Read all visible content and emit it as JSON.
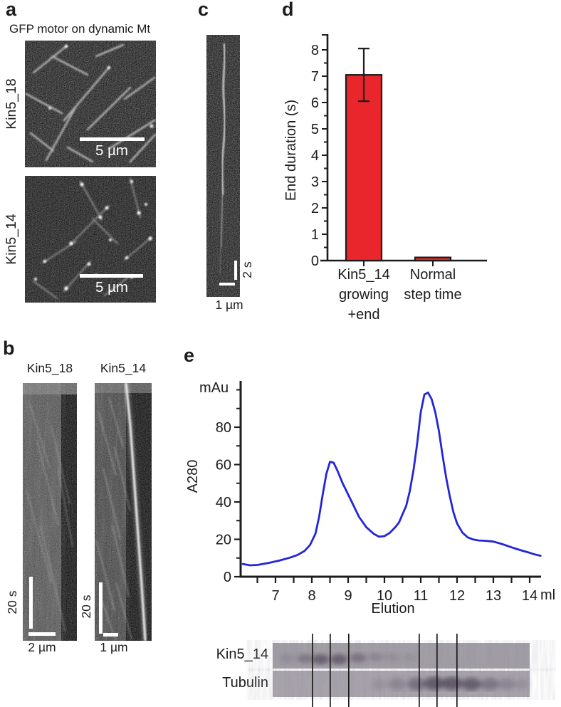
{
  "panels": {
    "a": {
      "letter": "a",
      "title": "GFP motor on dynamic Mt",
      "images": [
        {
          "label": "Kin5_18",
          "scalebar": "5 µm"
        },
        {
          "label": "Kin5_14",
          "scalebar": "5 µm"
        }
      ]
    },
    "b": {
      "letter": "b",
      "kymographs": [
        {
          "title": "Kin5_18",
          "time_bar": "20 s",
          "dist_bar": "2 µm"
        },
        {
          "title": "Kin5_14",
          "time_bar": "20 s",
          "dist_bar": "1 µm"
        }
      ]
    },
    "c": {
      "letter": "c",
      "time_bar": "2 s",
      "dist_bar": "1 µm"
    },
    "d": {
      "letter": "d"
    },
    "e": {
      "letter": "e",
      "gel_rows": [
        {
          "label": "Kin5_14"
        },
        {
          "label": "Tubulin"
        }
      ]
    }
  },
  "chart_data": [
    {
      "type": "bar",
      "panel": "d",
      "ylabel": "End duration (s)",
      "ylim": [
        0,
        8.5
      ],
      "yticks": [
        0,
        1,
        2,
        3,
        4,
        5,
        6,
        7,
        8
      ],
      "categories": [
        [
          "Kin5_14",
          "growing",
          "+end"
        ],
        [
          "Normal",
          "step time"
        ]
      ],
      "values": [
        7.05,
        0.12
      ],
      "errors": [
        1.0,
        0
      ],
      "bar_color": "#e8262b",
      "grid": false
    },
    {
      "type": "line",
      "panel": "e",
      "ylabel": "A280",
      "y_unit": "mAu",
      "xlabel": "Elution",
      "x_unit": "ml",
      "xlim": [
        6.05,
        14.3
      ],
      "ylim": [
        0,
        104
      ],
      "xticks": [
        7,
        8,
        9,
        10,
        11,
        12,
        13,
        14
      ],
      "yticks": [
        0,
        20,
        40,
        60,
        80
      ],
      "line_color": "#2326d6",
      "grid": false,
      "x": [
        6.1,
        6.3,
        6.5,
        6.8,
        7.1,
        7.4,
        7.6,
        7.8,
        7.95,
        8.1,
        8.2,
        8.3,
        8.4,
        8.5,
        8.6,
        8.7,
        8.85,
        9.0,
        9.15,
        9.3,
        9.5,
        9.7,
        9.85,
        10.0,
        10.15,
        10.3,
        10.4,
        10.5,
        10.6,
        10.7,
        10.8,
        10.9,
        11.0,
        11.1,
        11.2,
        11.3,
        11.4,
        11.5,
        11.6,
        11.7,
        11.8,
        11.9,
        12.0,
        12.15,
        12.3,
        12.45,
        12.6,
        12.8,
        13.0,
        13.2,
        13.4,
        13.6,
        13.8,
        14.0,
        14.15,
        14.3
      ],
      "y": [
        6.8,
        6.1,
        6.3,
        7.3,
        8.6,
        10.2,
        11.6,
        13.8,
        17,
        23,
        32,
        44,
        55,
        61.5,
        61,
        57,
        50,
        44,
        38,
        32,
        26.5,
        23,
        21.4,
        21.7,
        23.5,
        26.5,
        29,
        33.5,
        38,
        46,
        57,
        71,
        88,
        97.5,
        98.5,
        95,
        88,
        78,
        65,
        53,
        43,
        34.5,
        28.5,
        23.5,
        21,
        19.9,
        19.4,
        19.2,
        18.8,
        17.7,
        16.4,
        15.1,
        13.9,
        12.8,
        11.9,
        11.2
      ]
    }
  ]
}
